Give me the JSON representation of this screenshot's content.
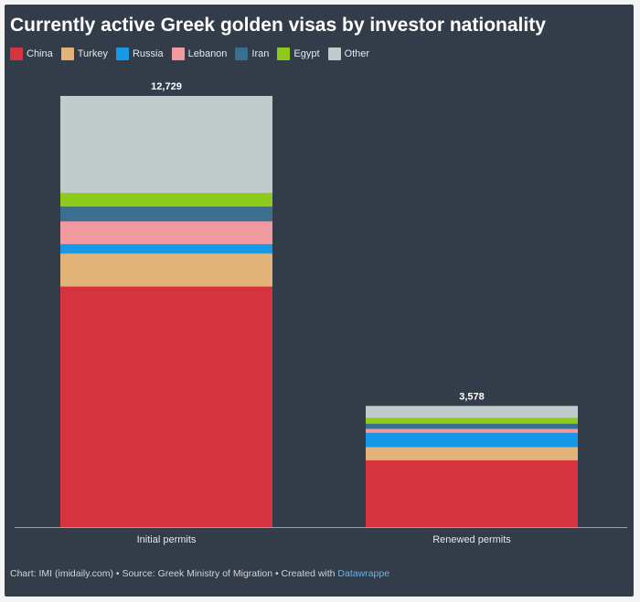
{
  "chart_data": {
    "type": "bar",
    "stacked": true,
    "title": "Currently active Greek golden visas by investor nationality",
    "categories": [
      "Initial permits",
      "Renewed permits"
    ],
    "totals": [
      12729,
      3578
    ],
    "total_labels": [
      "12,729",
      "3,578"
    ],
    "series": [
      {
        "name": "China",
        "color": "#d63340",
        "values": [
          7100,
          1970
        ]
      },
      {
        "name": "Turkey",
        "color": "#e1b379",
        "values": [
          980,
          390
        ]
      },
      {
        "name": "Russia",
        "color": "#1899e8",
        "values": [
          270,
          420
        ]
      },
      {
        "name": "Lebanon",
        "color": "#f19a9f",
        "values": [
          680,
          120
        ]
      },
      {
        "name": "Iran",
        "color": "#3a6f8f",
        "values": [
          430,
          150
        ]
      },
      {
        "name": "Egypt",
        "color": "#8dca1c",
        "values": [
          400,
          170
        ]
      },
      {
        "name": "Other",
        "color": "#c0cccc",
        "values": [
          2869,
          358
        ]
      }
    ],
    "ylim": [
      0,
      12729
    ],
    "grid": false,
    "legend_position": "top-left"
  },
  "footer": {
    "text": "Chart: IMI (imidaily.com) • Source: Greek Ministry of Migration • Created with ",
    "link": "Datawrappe"
  }
}
